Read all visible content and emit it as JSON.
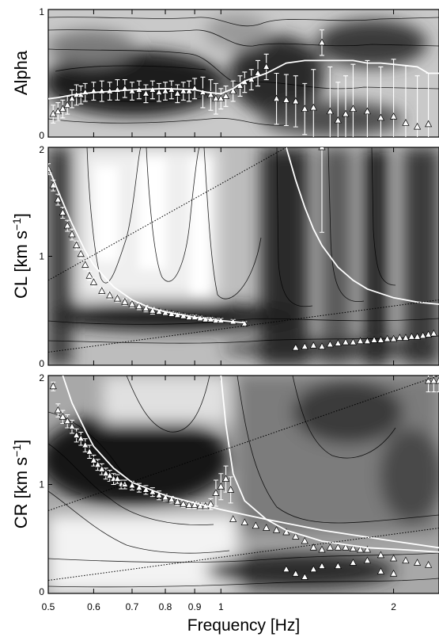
{
  "chart_data": [
    {
      "type": "heatmap",
      "ylabel": "Alpha",
      "ylim": [
        0,
        1
      ],
      "ytick_labels": [
        "0",
        "1"
      ],
      "yticks": [
        0,
        1
      ],
      "series": [
        {
          "name": "",
          "style": "white-triangles-with-error-bars",
          "x": [
            0.51,
            0.52,
            0.53,
            0.54,
            0.55,
            0.56,
            0.57,
            0.58,
            0.6,
            0.62,
            0.64,
            0.66,
            0.68,
            0.7,
            0.72,
            0.74,
            0.76,
            0.78,
            0.8,
            0.82,
            0.84,
            0.86,
            0.88,
            0.9,
            0.93,
            0.96,
            0.98,
            1.0,
            1.02,
            1.05,
            1.08,
            1.1,
            1.13,
            1.16,
            1.2,
            1.25,
            1.3,
            1.35,
            1.4,
            1.45,
            1.5,
            1.55,
            1.6,
            1.65,
            1.7,
            1.8,
            1.9,
            2.0,
            2.1,
            2.2,
            2.3
          ],
          "y": [
            0.18,
            0.2,
            0.22,
            0.25,
            0.3,
            0.33,
            0.33,
            0.35,
            0.36,
            0.36,
            0.36,
            0.37,
            0.38,
            0.36,
            0.37,
            0.34,
            0.37,
            0.35,
            0.36,
            0.37,
            0.34,
            0.36,
            0.36,
            0.38,
            0.35,
            0.33,
            0.3,
            0.3,
            0.32,
            0.36,
            0.4,
            0.43,
            0.45,
            0.5,
            0.55,
            0.3,
            0.29,
            0.28,
            0.22,
            0.23,
            0.74,
            0.2,
            0.13,
            0.18,
            0.22,
            0.2,
            0.15,
            0.16,
            0.11,
            0.08,
            0.1
          ],
          "err": [
            0.07,
            0.07,
            0.07,
            0.07,
            0.07,
            0.08,
            0.07,
            0.07,
            0.07,
            0.08,
            0.07,
            0.08,
            0.07,
            0.07,
            0.07,
            0.07,
            0.07,
            0.07,
            0.07,
            0.07,
            0.07,
            0.07,
            0.08,
            0.08,
            0.12,
            0.12,
            0.12,
            0.08,
            0.08,
            0.08,
            0.08,
            0.08,
            0.08,
            0.1,
            0.1,
            0.2,
            0.2,
            0.2,
            0.2,
            0.3,
            0.1,
            0.35,
            0.3,
            0.3,
            0.35,
            0.4,
            0.4,
            0.45,
            0.45,
            0.4,
            0.4
          ]
        },
        {
          "name": "",
          "style": "white-line",
          "x": [
            0.5,
            0.52,
            0.55,
            0.6,
            0.65,
            0.7,
            0.8,
            0.9,
            0.95,
            1.0,
            1.05,
            1.1,
            1.2,
            1.3,
            1.4,
            1.5,
            1.6,
            1.7,
            1.8,
            1.9,
            2.0,
            2.1,
            2.2,
            2.3,
            2.4
          ],
          "y": [
            0.3,
            0.31,
            0.33,
            0.35,
            0.36,
            0.37,
            0.38,
            0.37,
            0.35,
            0.34,
            0.38,
            0.44,
            0.5,
            0.58,
            0.6,
            0.6,
            0.6,
            0.6,
            0.58,
            0.58,
            0.57,
            0.56,
            0.55,
            0.5,
            0.5
          ]
        }
      ]
    },
    {
      "type": "heatmap",
      "ylabel": "CL [km s⁻¹]",
      "ylim": [
        0,
        2
      ],
      "ytick_labels": [
        "0",
        "1",
        "2"
      ],
      "yticks": [
        0,
        1,
        2
      ],
      "series": [
        {
          "name": "",
          "style": "white-triangles-with-error-bars",
          "x": [
            0.5,
            0.51,
            0.52,
            0.53,
            0.54,
            0.55,
            0.56,
            0.57,
            0.58,
            0.59,
            0.6,
            0.62,
            0.64,
            0.66,
            0.68,
            0.7,
            0.72,
            0.74,
            0.76,
            0.78,
            0.8,
            0.82,
            0.84,
            0.86,
            0.88,
            0.9,
            0.92,
            0.94,
            0.96,
            0.98,
            1.0,
            1.05,
            1.1
          ],
          "y": [
            1.8,
            1.65,
            1.52,
            1.4,
            1.28,
            1.2,
            1.1,
            1.02,
            0.92,
            0.82,
            0.76,
            0.68,
            0.64,
            0.61,
            0.58,
            0.56,
            0.54,
            0.52,
            0.5,
            0.49,
            0.48,
            0.47,
            0.46,
            0.45,
            0.44,
            0.44,
            0.43,
            0.42,
            0.42,
            0.41,
            0.41,
            0.4,
            0.38
          ],
          "err": [
            0.05,
            0.05,
            0.05,
            0.05,
            0.05,
            0.05,
            0.04,
            0.04,
            0.04,
            0.04,
            0.04,
            0.03,
            0.03,
            0.03,
            0.03,
            0.03,
            0.03,
            0.03,
            0.03,
            0.02,
            0.02,
            0.02,
            0.02,
            0.02,
            0.02,
            0.02,
            0.02,
            0.02,
            0.02,
            0.02,
            0.02,
            0.02,
            0.02
          ]
        },
        {
          "name": "",
          "style": "white-triangles",
          "x": [
            1.35,
            1.4,
            1.45,
            1.5,
            1.55,
            1.6,
            1.65,
            1.7,
            1.75,
            1.8,
            1.85,
            1.9,
            1.95,
            2.0,
            2.05,
            2.1,
            2.15,
            2.2,
            2.25,
            2.3,
            2.35
          ],
          "y": [
            0.16,
            0.17,
            0.18,
            0.17,
            0.19,
            0.2,
            0.21,
            0.21,
            0.22,
            0.22,
            0.23,
            0.23,
            0.24,
            0.24,
            0.25,
            0.25,
            0.26,
            0.26,
            0.27,
            0.28,
            0.29
          ]
        },
        {
          "name": "",
          "style": "white-triangles-with-error-bars",
          "x": [
            1.5
          ],
          "y": [
            2.0
          ],
          "err": [
            0.78
          ]
        },
        {
          "name": "",
          "style": "white-line",
          "x": [
            0.5,
            0.52,
            0.55,
            0.58,
            0.6,
            0.65,
            0.7,
            0.75,
            0.8,
            0.9,
            1.0,
            1.1
          ],
          "y": [
            1.82,
            1.6,
            1.3,
            1.05,
            0.92,
            0.72,
            0.6,
            0.53,
            0.49,
            0.44,
            0.41,
            0.39
          ]
        },
        {
          "name": "",
          "style": "white-line",
          "x": [
            1.3,
            1.35,
            1.4,
            1.45,
            1.5,
            1.6,
            1.7,
            1.8,
            2.0,
            2.2,
            2.4
          ],
          "y": [
            2.0,
            1.7,
            1.45,
            1.25,
            1.1,
            0.9,
            0.78,
            0.7,
            0.62,
            0.58,
            0.56
          ]
        },
        {
          "name": "",
          "style": "dotted-line",
          "x": [
            0.5,
            1.3
          ],
          "y": [
            0.78,
            2.0
          ]
        },
        {
          "name": "",
          "style": "dotted-line",
          "x": [
            0.5,
            2.4
          ],
          "y": [
            0.12,
            0.6
          ]
        }
      ]
    },
    {
      "type": "heatmap",
      "ylabel": "CR [km s⁻¹]",
      "xlabel": "Frequency [Hz]",
      "xscale": "log",
      "xlim": [
        0.5,
        2.4
      ],
      "ylim": [
        0,
        2
      ],
      "ytick_labels": [
        "0",
        "1",
        "2"
      ],
      "yticks": [
        0,
        1,
        2
      ],
      "xticks": [
        0.5,
        0.6,
        0.7,
        0.8,
        0.9,
        1,
        2
      ],
      "xtick_labels": [
        "0.5",
        "0.6",
        "0.7",
        "0.8",
        "0.9",
        "1",
        "2"
      ],
      "series": [
        {
          "name": "",
          "style": "white-triangles-with-error-bars",
          "x": [
            0.51,
            0.52,
            0.53,
            0.54,
            0.55,
            0.56,
            0.57,
            0.58,
            0.59,
            0.6,
            0.61,
            0.62,
            0.63,
            0.64,
            0.65,
            0.66,
            0.67,
            0.68,
            0.7,
            0.72,
            0.74,
            0.76,
            0.78,
            0.8,
            0.82,
            0.84,
            0.86,
            0.88,
            0.9,
            0.92,
            0.94,
            0.96,
            0.98,
            1.0,
            1.02,
            1.04
          ],
          "y": [
            1.9,
            1.68,
            1.62,
            1.58,
            1.53,
            1.45,
            1.42,
            1.36,
            1.3,
            1.22,
            1.18,
            1.14,
            1.1,
            1.08,
            1.05,
            1.05,
            1.0,
            1.0,
            0.99,
            0.97,
            0.95,
            0.93,
            0.9,
            0.88,
            0.86,
            0.84,
            0.82,
            0.81,
            0.81,
            0.8,
            0.8,
            0.82,
            0.92,
            0.98,
            1.05,
            0.95
          ],
          "err": [
            0.04,
            0.06,
            0.06,
            0.06,
            0.06,
            0.06,
            0.06,
            0.06,
            0.06,
            0.05,
            0.05,
            0.05,
            0.05,
            0.05,
            0.05,
            0.04,
            0.04,
            0.04,
            0.04,
            0.04,
            0.04,
            0.04,
            0.04,
            0.03,
            0.03,
            0.03,
            0.03,
            0.03,
            0.03,
            0.03,
            0.03,
            0.05,
            0.12,
            0.12,
            0.12,
            0.12
          ]
        },
        {
          "name": "",
          "style": "white-triangles",
          "x": [
            1.05,
            1.1,
            1.15,
            1.2,
            1.25,
            1.3,
            1.35,
            1.4,
            1.45,
            1.5,
            1.55,
            1.6,
            1.65,
            1.7,
            1.75,
            1.8,
            1.9,
            2.0,
            2.1,
            2.2,
            2.3
          ],
          "y": [
            0.68,
            0.65,
            0.62,
            0.6,
            0.58,
            0.56,
            0.52,
            0.48,
            0.42,
            0.4,
            0.42,
            0.42,
            0.42,
            0.41,
            0.4,
            0.4,
            0.35,
            0.32,
            0.3,
            0.28,
            0.26
          ]
        },
        {
          "name": "",
          "style": "white-triangles",
          "x": [
            1.3,
            1.35,
            1.4,
            1.45,
            1.5,
            1.6,
            1.7,
            1.8,
            1.9,
            2.0
          ],
          "y": [
            0.22,
            0.18,
            0.15,
            0.22,
            0.25,
            0.25,
            0.28,
            0.3,
            0.2,
            0.18
          ]
        },
        {
          "name": "",
          "style": "white-triangles-with-error-bars",
          "x": [
            2.3,
            2.35,
            2.4
          ],
          "y": [
            1.95,
            1.95,
            1.95
          ],
          "err": [
            0.1,
            0.1,
            0.1
          ]
        },
        {
          "name": "",
          "style": "white-line",
          "x": [
            0.53,
            0.55,
            0.58,
            0.6,
            0.65,
            0.7,
            0.8,
            0.9,
            1.0,
            1.2,
            1.5,
            2.0,
            2.4
          ],
          "y": [
            2.0,
            1.75,
            1.5,
            1.35,
            1.15,
            1.02,
            0.9,
            0.83,
            0.77,
            0.68,
            0.58,
            0.48,
            0.42
          ]
        },
        {
          "name": "",
          "style": "white-line",
          "x": [
            1.0,
            1.02,
            1.05,
            1.1,
            1.2,
            1.3,
            1.5,
            1.8,
            2.1,
            2.4
          ],
          "y": [
            2.0,
            1.55,
            1.1,
            0.85,
            0.68,
            0.58,
            0.48,
            0.42,
            0.4,
            0.38
          ]
        },
        {
          "name": "",
          "style": "dotted-line",
          "x": [
            0.5,
            2.4
          ],
          "y": [
            0.76,
            2.0
          ]
        },
        {
          "name": "",
          "style": "dotted-line",
          "x": [
            0.5,
            2.4
          ],
          "y": [
            0.12,
            0.6
          ]
        }
      ]
    }
  ]
}
